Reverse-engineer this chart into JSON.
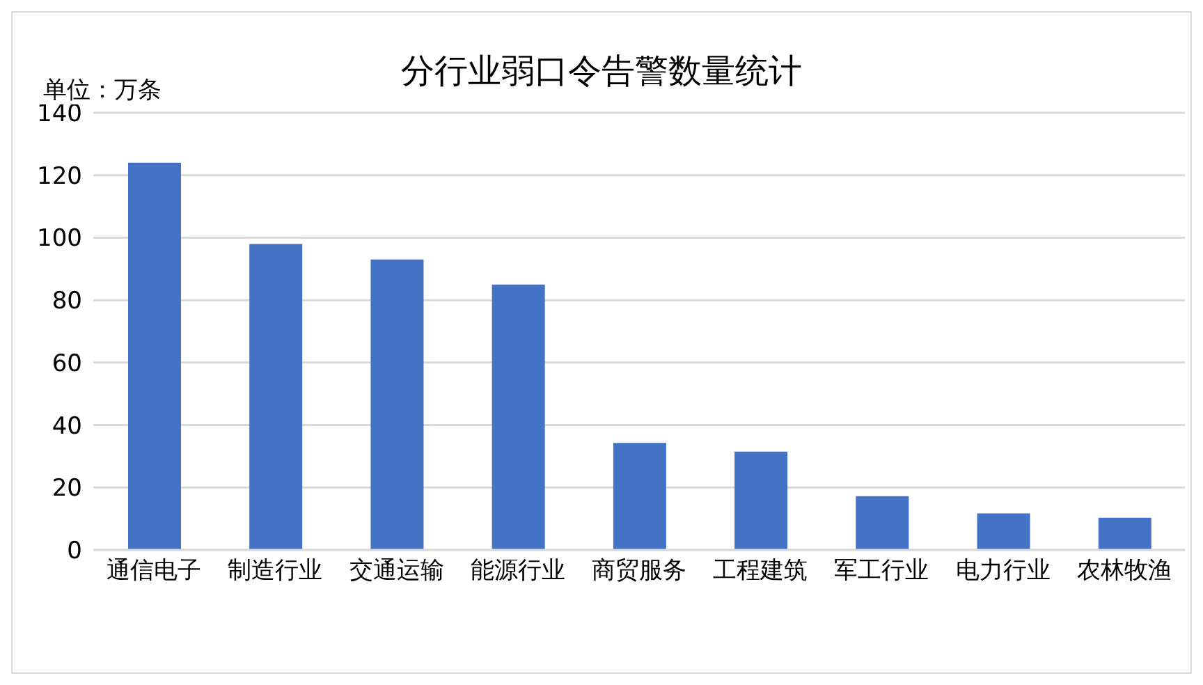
{
  "chart_data": {
    "type": "bar",
    "title": "分行业弱口令告警数量统计",
    "annotations": [
      "单位：万条"
    ],
    "categories": [
      "通信电子",
      "制造行业",
      "交通运输",
      "能源行业",
      "商贸服务",
      "工程建筑",
      "军工行业",
      "电力行业",
      "农林牧渔"
    ],
    "values": [
      124,
      98,
      93,
      85,
      34.3,
      31.5,
      17.2,
      11.7,
      10.3
    ],
    "color": "#4472c4",
    "ylim": [
      0,
      140
    ],
    "yticks": [
      0,
      20,
      40,
      60,
      80,
      100,
      120,
      140
    ],
    "grid": "y"
  }
}
